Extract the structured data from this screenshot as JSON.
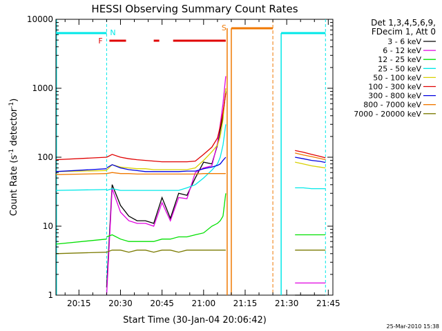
{
  "chart_data": {
    "type": "line",
    "title": "HESSI Observing Summary Count Rates",
    "xlabel": "Start Time (30-Jan-04 20:06:42)",
    "ylabel_main": "Count Rate (s",
    "ylabel_sup": "-1",
    "ylabel_mid": " detector",
    "ylabel_sup2": "-1",
    "ylabel_end": ")",
    "yscale": "log",
    "ylim": [
      1,
      10000
    ],
    "xlim": [
      "20:06:42",
      "21:46:40"
    ],
    "x_ticks": [
      "20:15",
      "20:30",
      "20:45",
      "21:00",
      "21:15",
      "21:30",
      "21:45"
    ],
    "y_ticks": [
      "1",
      "10",
      "100",
      "1000",
      "10000"
    ],
    "footer_date": "25-Mar-2010 15:38",
    "legend_header": [
      "Det 1,3,4,5,6,9,",
      "FDecim 1, Att 0"
    ],
    "legend_placement": "right",
    "flag_labels": {
      "night": "N",
      "flare": "F",
      "saa": "S"
    },
    "series": [
      {
        "name": "3 - 6 keV",
        "color": "#000000"
      },
      {
        "name": "6 - 12 keV",
        "color": "#e000e0"
      },
      {
        "name": "12 - 25 keV",
        "color": "#00e000"
      },
      {
        "name": "25 - 50 keV",
        "color": "#00e8e8"
      },
      {
        "name": "50 - 100 keV",
        "color": "#d8d000"
      },
      {
        "name": "100 - 300 keV",
        "color": "#e00000"
      },
      {
        "name": "300 - 800 keV",
        "color": "#0000e0"
      },
      {
        "name": "800 - 7000 keV",
        "color": "#f07800"
      },
      {
        "name": "7000 - 20000 keV",
        "color": "#7a7a00"
      }
    ],
    "segments": [
      {
        "x": [
          "20:25",
          "20:27",
          "20:30",
          "20:33",
          "20:36",
          "20:39",
          "20:42",
          "20:45",
          "20:48",
          "20:51",
          "20:54",
          "20:57",
          "21:00",
          "21:03",
          "21:05",
          "21:06",
          "21:07",
          "21:08"
        ],
        "values": {
          "3 - 6 keV": [
            1.3,
            40,
            20,
            14,
            12,
            12,
            11,
            26,
            13,
            30,
            28,
            50,
            85,
            80,
            150,
            250,
            400,
            900
          ],
          "6 - 12 keV": [
            1.0,
            35,
            16,
            12,
            11,
            11,
            10,
            22,
            12,
            26,
            25,
            60,
            70,
            75,
            160,
            300,
            600,
            1500
          ],
          "12 - 25 keV": [
            7,
            7.5,
            6.5,
            6,
            6,
            6,
            6,
            6.5,
            6.5,
            7,
            7,
            7.5,
            8,
            10,
            11,
            12,
            14,
            30
          ],
          "25 - 50 keV": [
            33,
            35,
            33,
            33,
            33,
            33,
            33,
            33,
            33,
            33,
            36,
            40,
            50,
            65,
            80,
            100,
            150,
            300
          ],
          "50 - 100 keV": [
            65,
            78,
            72,
            70,
            68,
            68,
            66,
            66,
            66,
            66,
            66,
            70,
            90,
            120,
            150,
            200,
            350,
            1000
          ],
          "100 - 300 keV": [
            100,
            110,
            100,
            95,
            92,
            90,
            88,
            86,
            86,
            86,
            86,
            88,
            110,
            140,
            190,
            280,
            450,
            850
          ],
          "300 - 800 keV": [
            70,
            78,
            70,
            66,
            64,
            62,
            62,
            62,
            62,
            62,
            63,
            63,
            68,
            72,
            76,
            80,
            90,
            100
          ],
          "800 - 7000 keV": [
            58,
            60,
            58,
            58,
            57,
            57,
            57,
            57,
            57,
            57,
            57,
            57,
            58,
            58,
            58,
            58,
            58,
            58
          ],
          "7000 - 20000 keV": [
            4.2,
            4.5,
            4.5,
            4.2,
            4.5,
            4.5,
            4.2,
            4.5,
            4.5,
            4.2,
            4.5,
            4.5,
            4.5,
            4.5,
            4.5,
            4.5,
            4.5,
            4.5
          ]
        }
      },
      {
        "x": [
          "21:33",
          "21:36",
          "21:39",
          "21:42",
          "21:44"
        ],
        "values": {
          "3 - 6 keV": [
            1,
            1,
            1,
            1,
            1
          ],
          "6 - 12 keV": [
            1.5,
            1.5,
            1.5,
            1.5,
            1.5
          ],
          "12 - 25 keV": [
            7.5,
            7.5,
            7.5,
            7.5,
            7.5
          ],
          "25 - 50 keV": [
            36,
            36,
            35,
            35,
            35
          ],
          "50 - 100 keV": [
            85,
            80,
            75,
            72,
            70
          ],
          "100 - 300 keV": [
            125,
            118,
            110,
            103,
            98
          ],
          "300 - 800 keV": [
            100,
            95,
            90,
            87,
            84
          ],
          "800 - 7000 keV": [
            115,
            108,
            102,
            96,
            92
          ],
          "7000 - 20000 keV": [
            4.5,
            4.5,
            4.5,
            4.5,
            4.5
          ]
        }
      }
    ],
    "pre_night_levels": {
      "x": [
        "20:06:42",
        "20:25"
      ],
      "values": {
        "12 - 25 keV": [
          5.5,
          6.5
        ],
        "25 - 50 keV": [
          33,
          34
        ],
        "50 - 100 keV": [
          62,
          64
        ],
        "100 - 300 keV": [
          92,
          100
        ],
        "300 - 800 keV": [
          62,
          68
        ],
        "800 - 7000 keV": [
          56,
          58
        ],
        "7000 - 20000 keV": [
          4.0,
          4.2
        ]
      }
    }
  }
}
